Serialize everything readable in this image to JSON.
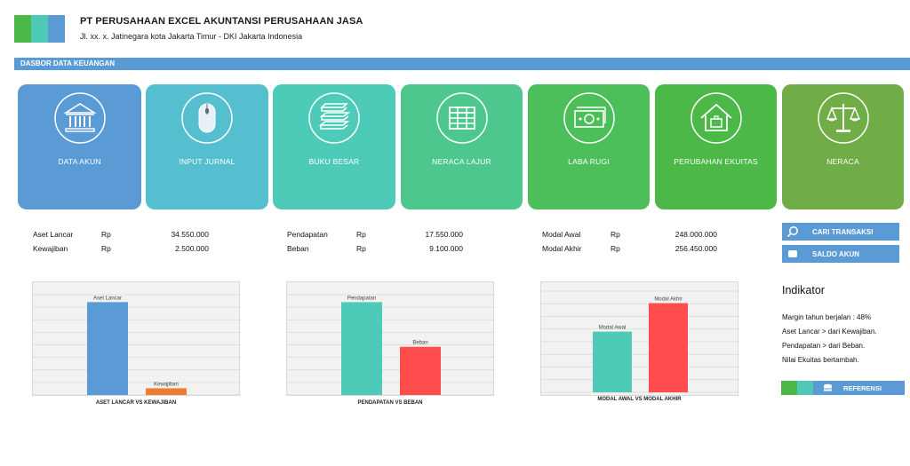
{
  "header": {
    "company_name": "PT PERUSAHAAN EXCEL AKUNTANSI PERUSAHAAN JASA",
    "address": "Jl. xx. x. Jatinegara kota Jakarta Timur - DKI Jakarta Indonesia",
    "logo_colors": [
      "#4bb848",
      "#4ec9b8",
      "#5b9bd5"
    ]
  },
  "section": {
    "title": "DASBOR DATA KEUANGAN"
  },
  "tiles": [
    {
      "label": "DATA AKUN",
      "color": "#5b9bd5",
      "icon": "bank-icon"
    },
    {
      "label": "INPUT JURNAL",
      "color": "#55bfd0",
      "icon": "mouse-icon"
    },
    {
      "label": "BUKU BESAR",
      "color": "#4ecab8",
      "icon": "books-icon"
    },
    {
      "label": "NERACA LAJUR",
      "color": "#4dc78e",
      "icon": "table-icon"
    },
    {
      "label": "LABA RUGI",
      "color": "#4dbf5a",
      "icon": "money-icon"
    },
    {
      "label": "PERUBAHAN EKUITAS",
      "color": "#4bb848",
      "icon": "house-icon"
    },
    {
      "label": "NERACA",
      "color": "#70ad47",
      "icon": "scale-icon"
    }
  ],
  "metrics": {
    "group1": [
      {
        "label": "Aset Lancar",
        "currency": "Rp",
        "value": "34.550.000"
      },
      {
        "label": "Kewajiban",
        "currency": "Rp",
        "value": "2.500.000"
      }
    ],
    "group2": [
      {
        "label": "Pendapatan",
        "currency": "Rp",
        "value": "17.550.000"
      },
      {
        "label": "Beban",
        "currency": "Rp",
        "value": "9.100.000"
      }
    ],
    "group3": [
      {
        "label": "Modal Awal",
        "currency": "Rp",
        "value": "248.000.000"
      },
      {
        "label": "Modal Akhir",
        "currency": "Rp",
        "value": "256.450.000"
      }
    ]
  },
  "buttons": {
    "search": "CARI TRANSAKSI",
    "balance": "SALDO AKUN",
    "reference": "REFERENSI"
  },
  "indicator": {
    "title": "Indikator",
    "lines": [
      "Margin tahun berjalan : 48%",
      "Aset Lancar > dari Kewajiban.",
      "Pendapatan > dari Beban.",
      "Nilai Ekuitas bertambah."
    ]
  },
  "chart_data": [
    {
      "type": "bar",
      "title": "ASET LANCAR VS KEWAJIBAN",
      "categories": [
        "Aset Lancar",
        "Kewajiban"
      ],
      "values": [
        34550000,
        2500000
      ],
      "colors": [
        "#5b9bd5",
        "#ed7d31"
      ],
      "grid": true
    },
    {
      "type": "bar",
      "title": "PENDAPATAN VS BEBAN",
      "categories": [
        "Pendapatan",
        "Beban"
      ],
      "values": [
        17550000,
        9100000
      ],
      "colors": [
        "#4ecab8",
        "#ff4d4d"
      ],
      "grid": true
    },
    {
      "type": "bar",
      "title": "MODAL AWAL VS MODAL AKHIR",
      "categories": [
        "Modal Awal",
        "Modal Akhir"
      ],
      "values": [
        248000000,
        256450000
      ],
      "ylim": [
        230000000,
        260000000
      ],
      "colors": [
        "#4ecab8",
        "#ff4d4d"
      ],
      "grid": true
    }
  ]
}
